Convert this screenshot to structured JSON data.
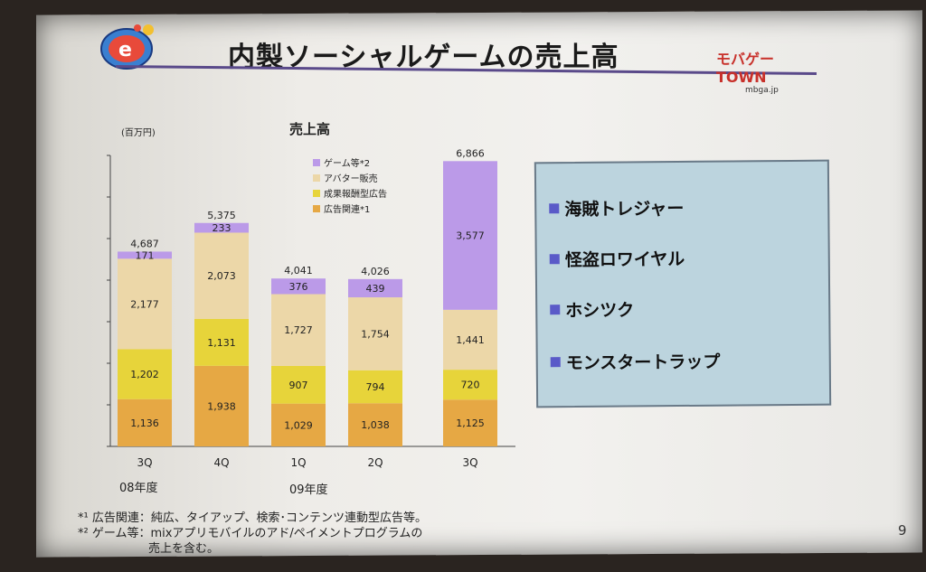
{
  "slide": {
    "title": "内製ソーシャルゲームの売上高",
    "brand_logo": "モバゲーTOWN",
    "brand_sub": "mbga.jp",
    "page_number": "9"
  },
  "chart_data": {
    "type": "bar",
    "stacked": true,
    "title": "売上高",
    "unit_label": "(百万円)",
    "categories": [
      "3Q",
      "4Q",
      "1Q",
      "2Q",
      "3Q"
    ],
    "year_labels": [
      "08年度",
      "09年度"
    ],
    "series": [
      {
        "name": "広告関連*1",
        "values": [
          1136,
          1938,
          1029,
          1038,
          1125
        ],
        "color": "#e6a844"
      },
      {
        "name": "成果報酬型広告",
        "values": [
          1202,
          1131,
          907,
          794,
          720
        ],
        "color": "#e7d43a"
      },
      {
        "name": "アバター販売",
        "values": [
          2177,
          2073,
          1727,
          1754,
          1441
        ],
        "color": "#ecd7a8"
      },
      {
        "name": "ゲーム等*2",
        "values": [
          171,
          233,
          376,
          439,
          3577
        ],
        "color": "#bb9ae8"
      }
    ],
    "totals": [
      "4,687",
      "5,375",
      "4,041",
      "4,026",
      "6,866"
    ],
    "ylim": [
      0,
      7000
    ],
    "grid": false,
    "legend_position": "top-center"
  },
  "info_box": {
    "items": [
      "海賊トレジャー",
      "怪盗ロワイヤル",
      "ホシツク",
      "モンスタートラップ"
    ]
  },
  "footnotes": {
    "note1": "*¹ 広告関連：純広、タイアップ、検索･コンテンツ連動型広告等。",
    "note2": "*² ゲーム等：mixアプリモバイルのアド/ペイメントプログラムの",
    "note2_cont": "売上を含む。"
  }
}
